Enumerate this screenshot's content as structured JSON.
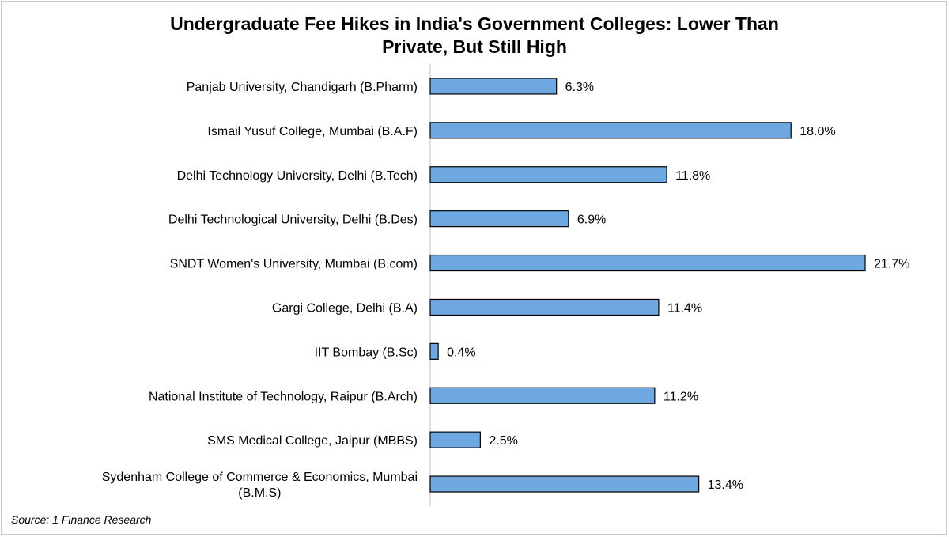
{
  "chart_data": {
    "type": "bar",
    "orientation": "horizontal",
    "title": "Undergraduate Fee Hikes in India's Government Colleges: Lower Than\nPrivate, But Still High",
    "categories": [
      "Panjab University, Chandigarh (B.Pharm)",
      "Ismail Yusuf College, Mumbai (B.A.F)",
      "Delhi Technology University, Delhi (B.Tech)",
      "Delhi Technological University, Delhi (B.Des)",
      "SNDT Women's University, Mumbai (B.com)",
      "Gargi College, Delhi (B.A)",
      "IIT Bombay (B.Sc)",
      "National Institute of Technology, Raipur (B.Arch)",
      "SMS Medical College, Jaipur (MBBS)",
      "Sydenham College of Commerce & Economics, Mumbai\n(B.M.S)"
    ],
    "values": [
      6.3,
      18.0,
      11.8,
      6.9,
      21.7,
      11.4,
      0.4,
      11.2,
      2.5,
      13.4
    ],
    "value_labels": [
      "6.3%",
      "18.0%",
      "11.8%",
      "6.9%",
      "21.7%",
      "11.4%",
      "0.4%",
      "11.2%",
      "2.5%",
      "13.4%"
    ],
    "xlim": [
      0,
      21.7
    ],
    "grid": false,
    "bar_color": "#6fa8e0",
    "bar_edge_color": "#000000",
    "axis_color": "#bfbfbf"
  },
  "source": "Source: 1 Finance Research"
}
